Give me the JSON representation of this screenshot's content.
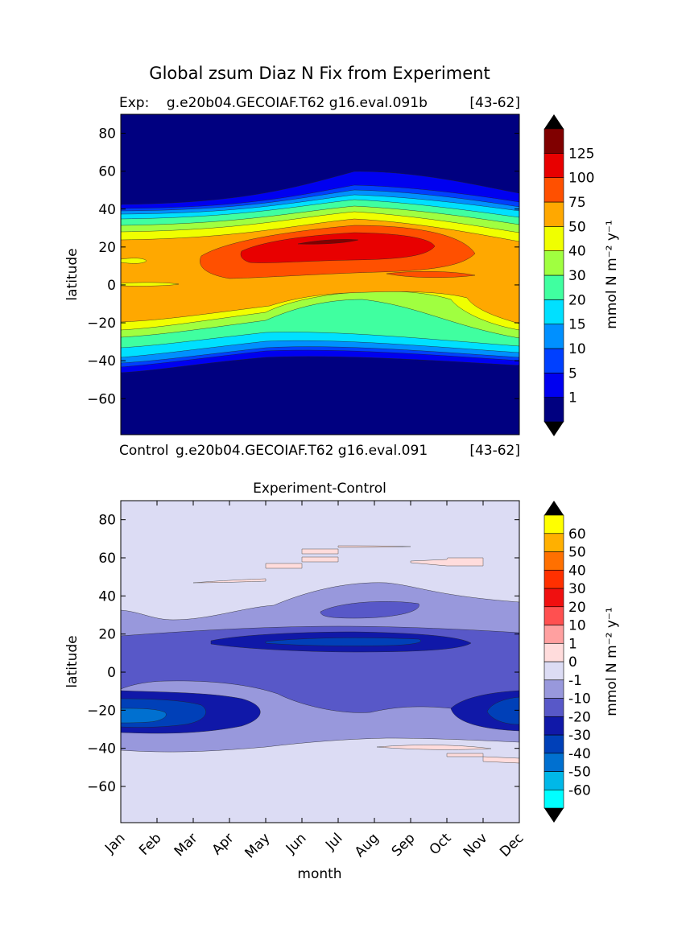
{
  "title": "Global zsum Diaz N Fix from Experiment",
  "chart_data": [
    {
      "type": "heatmap",
      "left_header": "Exp:    g.e20b04.GECOIAF.T62 g16.eval.091b",
      "right_header": "[43-62]",
      "xlabel": "",
      "ylabel": "latitude",
      "ylim": [
        -79,
        90
      ],
      "yticks": [
        80,
        60,
        40,
        20,
        0,
        -20,
        -40,
        -60
      ],
      "colorbar": {
        "label": "mmol N m⁻² y⁻¹",
        "levels": [
          "1",
          "5",
          "10",
          "15",
          "20",
          "30",
          "40",
          "50",
          "75",
          "100",
          "125"
        ],
        "colors": [
          "#000080",
          "#0000f0",
          "#0040ff",
          "#0090ff",
          "#00e0ff",
          "#40ffa0",
          "#a0ff40",
          "#f0ff00",
          "#ffa800",
          "#ff5000",
          "#e80000",
          "#800000"
        ],
        "extend": "both"
      }
    },
    {
      "type": "heatmap",
      "left_header": "Control",
      "center_header": "g.e20b04.GECOIAF.T62 g16.eval.091",
      "right_header": "[43-62]",
      "title": "Experiment-Control",
      "xlabel": "month",
      "ylabel": "latitude",
      "categories": [
        "Jan",
        "Feb",
        "Mar",
        "Apr",
        "May",
        "Jun",
        "Jul",
        "Aug",
        "Sep",
        "Oct",
        "Nov",
        "Dec"
      ],
      "ylim": [
        -79,
        90
      ],
      "yticks": [
        80,
        60,
        40,
        20,
        0,
        -20,
        -40,
        -60
      ],
      "colorbar": {
        "label": "mmol N m⁻² y⁻¹",
        "levels": [
          "-60",
          "-50",
          "-40",
          "-30",
          "-20",
          "-10",
          "-1",
          "0",
          "1",
          "10",
          "20",
          "30",
          "40",
          "50",
          "60"
        ],
        "colors": [
          "#00ffff",
          "#00b8e8",
          "#0070d0",
          "#0040b8",
          "#1018a8",
          "#5858c8",
          "#9898dc",
          "#dcdcf4",
          "#ffdcdc",
          "#ffa0a0",
          "#ff5050",
          "#f01010",
          "#ff3000",
          "#ff7000",
          "#ffb000",
          "#ffff00"
        ],
        "extend": "both"
      }
    }
  ]
}
